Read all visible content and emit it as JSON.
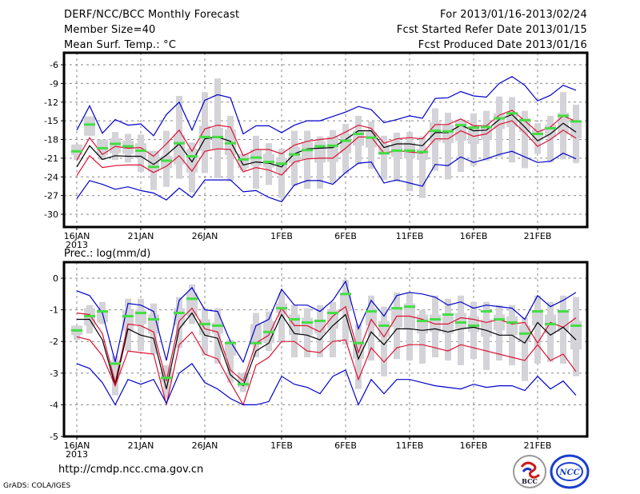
{
  "header": {
    "left": [
      "DERF/NCC/BCC Monthly Forecast",
      "Member Size=40",
      "Mean Surf. Temp.: °C"
    ],
    "right": [
      "For 2013/01/16-2013/02/24",
      "Fcst Started Refer Date 2013/01/15",
      "Fcst Produced Date 2013/01/16"
    ]
  },
  "footer": {
    "url": "http://cmdp.ncc.cma.gov.cn",
    "credit": "GrADS: COLA/IGES",
    "logos": [
      "BCC",
      "NCC"
    ]
  },
  "colors": {
    "envelope": "#0000cc",
    "quartile": "#dd1133",
    "mean": "#000000",
    "box": "#d3d3d8",
    "median": "#44dd44"
  },
  "chart_data": [
    {
      "type": "line",
      "title": "Mean Surf. Temp.: °C",
      "xlabel": "",
      "ylabel": "°C",
      "ylim": [
        -32.5,
        -4
      ],
      "yticks": [
        -6,
        -9,
        -12,
        -15,
        -18,
        -21,
        -24,
        -27,
        -30
      ],
      "xtick_labels": [
        "16JAN",
        "21JAN",
        "26JAN",
        "1FEB",
        "6FEB",
        "11FEB",
        "16FEB",
        "21FEB"
      ],
      "xtick_days": [
        0,
        5,
        10,
        16,
        21,
        26,
        31,
        36
      ],
      "xtick_sublabel": "2013",
      "grid": true,
      "days": 40,
      "series": [
        {
          "name": "max",
          "values": [
            -16.5,
            -12.6,
            -17,
            -14.8,
            -15.7,
            -15.5,
            -17.4,
            -14,
            -12,
            -16.5,
            -11.7,
            -10.8,
            -11.3,
            -17.1,
            -15.8,
            -15.8,
            -16.9,
            -15.7,
            -15,
            -15,
            -14.3,
            -13.6,
            -12.7,
            -13.2,
            -15.3,
            -14.8,
            -14.2,
            -14.6,
            -11.4,
            -11.3,
            -10.3,
            -11,
            -11.2,
            -9,
            -7.9,
            -9.3,
            -11.8,
            -10.9,
            -9.3,
            -10.1
          ]
        },
        {
          "name": "p75",
          "values": [
            -21.3,
            -17.7,
            -20.4,
            -19.1,
            -19.4,
            -19.3,
            -20.7,
            -18.7,
            -16.5,
            -19.9,
            -16.3,
            -15.7,
            -16,
            -20.6,
            -19.6,
            -19.6,
            -20.3,
            -18.9,
            -18.3,
            -18,
            -17.8,
            -16.8,
            -15.7,
            -16.2,
            -18.6,
            -17.9,
            -17.7,
            -17.9,
            -15.6,
            -15.6,
            -14.7,
            -15.8,
            -15.8,
            -14.1,
            -13.3,
            -15,
            -16.8,
            -16,
            -14.2,
            -15.1
          ]
        },
        {
          "name": "mean",
          "values": [
            -22.4,
            -19,
            -21.2,
            -20.6,
            -20.7,
            -20.7,
            -22,
            -20.5,
            -18.7,
            -21.6,
            -17.9,
            -17.6,
            -18.3,
            -22.1,
            -21.6,
            -21.8,
            -22.4,
            -20.3,
            -19.5,
            -19.4,
            -19.3,
            -18,
            -16.6,
            -16.6,
            -19.3,
            -18.7,
            -18.7,
            -19,
            -16.9,
            -16.9,
            -15.7,
            -16.6,
            -16.5,
            -14.8,
            -14,
            -16,
            -18.2,
            -17.1,
            -15.4,
            -16.8
          ]
        },
        {
          "name": "p25",
          "values": [
            -23.8,
            -20.6,
            -22.5,
            -22.2,
            -22.1,
            -22.1,
            -23.3,
            -22.3,
            -20.6,
            -23.1,
            -19.9,
            -19.5,
            -19.6,
            -23.2,
            -22.5,
            -22.9,
            -23.7,
            -21.6,
            -21.1,
            -21,
            -21,
            -19.4,
            -17.6,
            -17.6,
            -20.2,
            -19.8,
            -20,
            -20.2,
            -17.9,
            -17.9,
            -16.6,
            -17.5,
            -17.1,
            -15.6,
            -15,
            -16.9,
            -19.1,
            -18,
            -16.5,
            -17.8
          ]
        },
        {
          "name": "min",
          "values": [
            -27.5,
            -24.6,
            -25.2,
            -26,
            -25.6,
            -26.2,
            -26.6,
            -27.7,
            -25.8,
            -27.3,
            -24.5,
            -24.5,
            -24.5,
            -26.4,
            -26.2,
            -27.3,
            -28,
            -25.3,
            -24.6,
            -24.6,
            -25.2,
            -23.3,
            -21.8,
            -21.6,
            -25,
            -24.5,
            -25,
            -25.5,
            -22,
            -22.2,
            -20.8,
            -21.7,
            -21.1,
            -20.4,
            -19.9,
            -20.8,
            -21.7,
            -21.5,
            -20.2,
            -21.1
          ]
        }
      ],
      "boxes": {
        "whisker_low": [
          -21.3,
          -17.4,
          -21.3,
          -21.3,
          -21.7,
          -23.2,
          -26.1,
          -25.6,
          -24.3,
          -26.5,
          -23.4,
          -24.2,
          -24.7,
          -23,
          -25.9,
          -25.3,
          -27.4,
          -25.5,
          -25.9,
          -25.9,
          -25,
          -23.5,
          -22,
          -22.7,
          -24.5,
          -24.8,
          -26.3,
          -27.4,
          -23,
          -24.4,
          -23.2,
          -22.2,
          -21.4,
          -20.8,
          -21.7,
          -22.6,
          -20.3,
          -21.7,
          -21.2,
          -21.8
        ],
        "whisker_high": [
          -18.8,
          -14.3,
          -18,
          -16.8,
          -17.1,
          -17.2,
          -19.8,
          -16.6,
          -11,
          -18.5,
          -10.4,
          -8.2,
          -14.2,
          -20.3,
          -17.4,
          -18.6,
          -19.5,
          -16.6,
          -16.6,
          -17.5,
          -16.5,
          -15.5,
          -14.2,
          -15.1,
          -17.4,
          -16.9,
          -16.8,
          -17.5,
          -13,
          -13.7,
          -15,
          -13.8,
          -13.4,
          -11.1,
          -11.2,
          -13.4,
          -15.4,
          -14.2,
          -10.4,
          -12.4
        ],
        "box_low": [
          -20.5,
          -17.4,
          -20.5,
          -20.2,
          -20.3,
          -21,
          -23.2,
          -22.6,
          -22,
          -23.3,
          -19.8,
          -19.6,
          -20.5,
          -22.6,
          -22.2,
          -22.5,
          -23.2,
          -21.8,
          -21.2,
          -21.7,
          -21.6,
          -20.2,
          -19,
          -19.3,
          -20.5,
          -20.8,
          -21,
          -21.3,
          -18.4,
          -18.6,
          -18.2,
          -18.7,
          -18.1,
          -16.3,
          -16,
          -16.8,
          -18.2,
          -17.6,
          -17.2,
          -17.8
        ],
        "box_high": [
          -18.8,
          -14.3,
          -18,
          -17.8,
          -18.2,
          -18.6,
          -19.8,
          -20.6,
          -17.3,
          -19.5,
          -15.8,
          -16.1,
          -16.4,
          -20.3,
          -19.6,
          -20.3,
          -21,
          -19.2,
          -18.4,
          -18.3,
          -17.5,
          -17.1,
          -16.6,
          -16.8,
          -18.8,
          -18.3,
          -18.4,
          -19.5,
          -15.2,
          -15.6,
          -14.8,
          -16.1,
          -15.8,
          -13.8,
          -13.6,
          -14.6,
          -16.4,
          -15.6,
          -13.7,
          -14.9
        ],
        "median": [
          -19.9,
          -15.6,
          -19.4,
          -18.7,
          -19.1,
          -19.8,
          -22.4,
          -21.4,
          -18.6,
          -20.7,
          -17.6,
          -17.6,
          -18.6,
          -21.2,
          -20.9,
          -21.6,
          -21.9,
          -20.4,
          -19.7,
          -19.1,
          -19,
          -18.2,
          -17.1,
          -17.7,
          -20.2,
          -19.8,
          -19.8,
          -20,
          -16.6,
          -16.7,
          -15.7,
          -16.1,
          -16,
          -14.6,
          -13.8,
          -14.9,
          -17.1,
          -16.2,
          -14.2,
          -15.1
        ]
      }
    },
    {
      "type": "line",
      "title": "Prec.: log(mm/d)",
      "xlabel": "",
      "ylabel": "log(mm/d)",
      "ylim": [
        -5,
        0.5
      ],
      "yticks": [
        0,
        -1,
        -2,
        -3,
        -4,
        -5
      ],
      "xtick_labels": [
        "16JAN",
        "21JAN",
        "26JAN",
        "1FEB",
        "6FEB",
        "11FEB",
        "16FEB",
        "21FEB"
      ],
      "xtick_days": [
        0,
        5,
        10,
        16,
        21,
        26,
        31,
        36
      ],
      "xtick_sublabel": "2013",
      "grid": true,
      "days": 40,
      "series": [
        {
          "name": "max",
          "values": [
            -0.4,
            -0.55,
            -1.1,
            -2.65,
            -0.8,
            -0.85,
            -1.05,
            -2.6,
            -0.7,
            -0.3,
            -1,
            -1.05,
            -2,
            -2.65,
            -1.5,
            -1.3,
            -0.35,
            -0.85,
            -0.85,
            -1.05,
            -0.7,
            -0.1,
            -1.6,
            -0.7,
            -1.2,
            -0.55,
            -0.45,
            -0.5,
            -0.6,
            -0.85,
            -0.75,
            -0.95,
            -0.85,
            -0.9,
            -0.95,
            -1.3,
            -0.55,
            -0.9,
            -0.7,
            -0.45
          ]
        },
        {
          "name": "p75",
          "values": [
            -1.1,
            -1.15,
            -1.75,
            -3.3,
            -1.45,
            -1.5,
            -1.7,
            -3.25,
            -1.35,
            -0.95,
            -1.6,
            -1.7,
            -2.9,
            -3.25,
            -2.05,
            -1.8,
            -0.95,
            -1.5,
            -1.5,
            -1.7,
            -1.2,
            -0.9,
            -2.35,
            -1.3,
            -1.85,
            -1.2,
            -1.2,
            -1.3,
            -1.45,
            -1.45,
            -1.25,
            -1.3,
            -1.4,
            -1.3,
            -1.45,
            -1.4,
            -2.05,
            -1.4,
            -1.55,
            -1.25
          ]
        },
        {
          "name": "mean",
          "values": [
            -1.3,
            -1.3,
            -1.95,
            -3.4,
            -1.6,
            -1.8,
            -1.9,
            -3.5,
            -1.6,
            -1.1,
            -1.8,
            -1.9,
            -3.05,
            -3.4,
            -2.3,
            -2.05,
            -1.15,
            -1.75,
            -1.8,
            -1.95,
            -1.5,
            -1.15,
            -2.55,
            -1.7,
            -2.1,
            -1.6,
            -1.6,
            -1.65,
            -1.6,
            -1.7,
            -1.6,
            -1.55,
            -1.65,
            -1.8,
            -1.8,
            -2.05,
            -1.4,
            -1.8,
            -1.55,
            -1.95
          ]
        },
        {
          "name": "p25",
          "values": [
            -1.85,
            -1.95,
            -2.45,
            -3.4,
            -2.3,
            -2.35,
            -2.4,
            -4,
            -2.1,
            -1.7,
            -2.4,
            -2.55,
            -3.3,
            -4,
            -2.75,
            -2.5,
            -2.0,
            -2.0,
            -2.3,
            -2.35,
            -2.0,
            -1.95,
            -3.2,
            -2.2,
            -2.65,
            -2.2,
            -2.1,
            -2.1,
            -2.2,
            -2.3,
            -2.1,
            -2.2,
            -2.3,
            -2.4,
            -2.5,
            -2.6,
            -2.1,
            -2.6,
            -2.4,
            -2.95
          ]
        },
        {
          "name": "min",
          "values": [
            -2.7,
            -2.85,
            -3.3,
            -4,
            -3.2,
            -3.35,
            -3.2,
            -3.95,
            -3,
            -2.7,
            -3.3,
            -3.5,
            -3.8,
            -4,
            -4,
            -3.9,
            -3.1,
            -3.35,
            -3.45,
            -3.65,
            -3.1,
            -2.9,
            -4,
            -3.2,
            -3.65,
            -3.2,
            -3.2,
            -3.3,
            -3.4,
            -3.45,
            -3.5,
            -3.35,
            -3.45,
            -3.4,
            -3.4,
            -3.55,
            -3.1,
            -3.5,
            -3.25,
            -3.7
          ]
        }
      ],
      "boxes": {
        "whisker_low": [
          -1.95,
          -1.75,
          -1.45,
          -3.7,
          -2.3,
          -2.3,
          -2.4,
          -3.8,
          -2.2,
          -1.45,
          -2.45,
          -2.7,
          -3.3,
          -3.6,
          -2.5,
          -2.3,
          -2.05,
          -2.5,
          -2.5,
          -2.5,
          -2.5,
          -2.1,
          -3.5,
          -2.6,
          -3.1,
          -2.55,
          -2.6,
          -2.7,
          -2.5,
          -2.6,
          -2.75,
          -2.55,
          -2.9,
          -2.6,
          -2.75,
          -3.25,
          -2.7,
          -2.65,
          -2.7,
          -3.1
        ],
        "whisker_high": [
          -1.5,
          -0.85,
          -0.75,
          -2.45,
          -0.65,
          -0.65,
          -0.8,
          -2.75,
          -0.6,
          -0.2,
          -0.95,
          -0.95,
          -1.95,
          -3.0,
          -1.1,
          -1.05,
          -0.45,
          -0.85,
          -0.95,
          -0.85,
          -0.75,
          -0.05,
          -1.45,
          -0.55,
          -0.9,
          -0.45,
          -0.45,
          -1.0,
          -0.55,
          -0.65,
          -0.55,
          -0.75,
          -0.75,
          -0.85,
          -0.85,
          -1.25,
          -0.55,
          -0.75,
          -0.55,
          -0.6
        ],
        "box_low": [
          -1.8,
          -1.5,
          -1.4,
          -3.05,
          -1.65,
          -1.45,
          -1.75,
          -3.3,
          -1.5,
          -1.2,
          -1.8,
          -1.75,
          -2.45,
          -3.45,
          -2.1,
          -2.05,
          -1.1,
          -1.8,
          -1.8,
          -1.75,
          -1.6,
          -1.05,
          -2.55,
          -1.5,
          -1.85,
          -1.55,
          -1.6,
          -1.75,
          -1.7,
          -1.75,
          -1.6,
          -1.7,
          -1.85,
          -1.65,
          -1.8,
          -2.0,
          -1.5,
          -1.75,
          -1.7,
          -2.25
        ],
        "box_high": [
          -1.5,
          -0.95,
          -1.05,
          -2.6,
          -1.0,
          -1.0,
          -1.15,
          -2.85,
          -0.95,
          -0.45,
          -1.3,
          -1.4,
          -2.05,
          -3.0,
          -1.45,
          -1.35,
          -0.8,
          -1.15,
          -1.25,
          -1.3,
          -1.0,
          -0.5,
          -2.0,
          -0.95,
          -1.35,
          -1.0,
          -0.8,
          -1.15,
          -1.15,
          -1.2,
          -1.1,
          -1.2,
          -1.3,
          -1.15,
          -1.2,
          -1.5,
          -1.0,
          -1.15,
          -1.0,
          -1.35
        ],
        "median": [
          -1.65,
          -1.2,
          -1.05,
          -2.7,
          -1.2,
          -1.1,
          -1.3,
          -3.15,
          -1.1,
          -0.65,
          -1.45,
          -1.5,
          -2.05,
          -3.35,
          -2.05,
          -1.7,
          -0.95,
          -1.3,
          -1.4,
          -1.35,
          -1.1,
          -0.5,
          -2.05,
          -1.05,
          -1.5,
          -0.95,
          -0.9,
          -1.35,
          -1.3,
          -1.15,
          -1.4,
          -1.5,
          -1.05,
          -1.3,
          -1.4,
          -1.75,
          -1.05,
          -1.45,
          -1.05,
          -1.5
        ]
      }
    }
  ]
}
